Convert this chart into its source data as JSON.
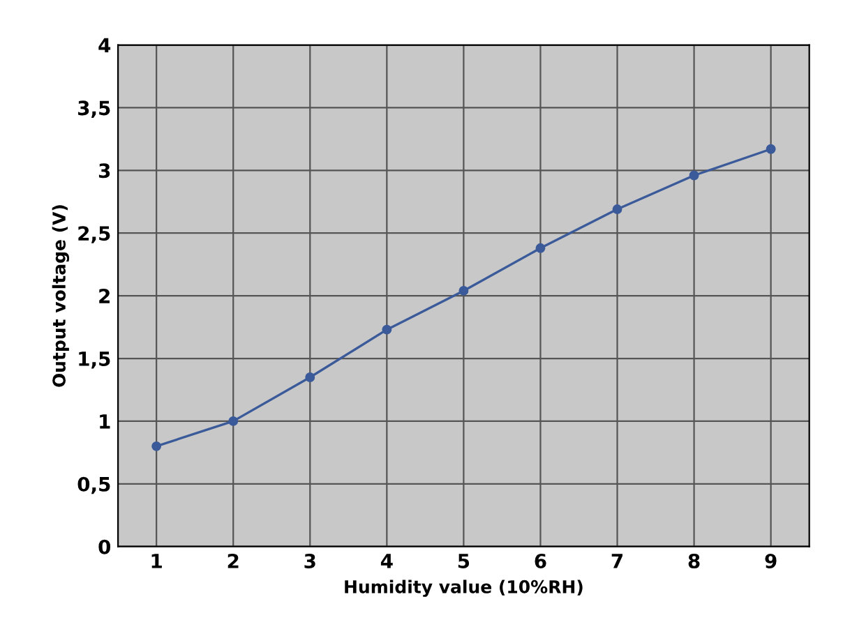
{
  "chart_data": {
    "type": "line",
    "xlabel": "Humidity value (10%RH)",
    "ylabel": "Output voltage (V)",
    "categories": [
      "1",
      "2",
      "3",
      "4",
      "5",
      "6",
      "7",
      "8",
      "9"
    ],
    "series": [
      {
        "color": "#3a5a9a",
        "values": [
          0.8,
          1.0,
          1.35,
          1.73,
          2.04,
          2.38,
          2.69,
          2.96,
          3.17
        ]
      }
    ],
    "ylim": [
      0,
      4
    ],
    "yticks": [
      0,
      {
        "value": 0.5,
        "label": "0,5"
      },
      1,
      {
        "value": 1.5,
        "label": "1,5"
      },
      2,
      {
        "value": 2.5,
        "label": "2,5"
      },
      3,
      {
        "value": 3.5,
        "label": "3,5"
      },
      4
    ],
    "grid": true,
    "marker": "circle",
    "line_style": "solid"
  }
}
